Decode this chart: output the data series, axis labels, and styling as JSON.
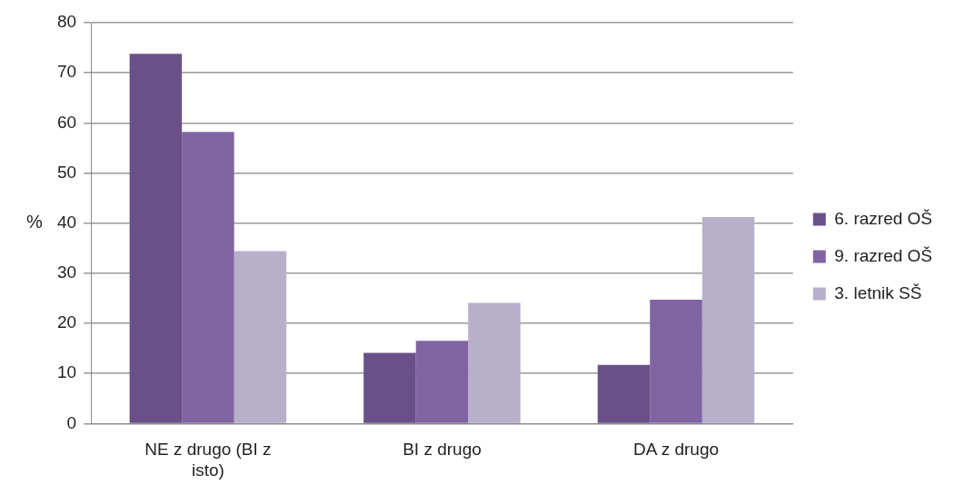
{
  "chart_data": {
    "type": "bar",
    "ylabel": "%",
    "categories": [
      "NE z drugo (BI z isto)",
      "BI z drugo",
      "DA z drugo"
    ],
    "series": [
      {
        "name": "6. razred OŠ",
        "color": "#6a5089",
        "values": [
          73.8,
          14.1,
          11.7
        ]
      },
      {
        "name": "9. razred OŠ",
        "color": "#8064a2",
        "values": [
          58.2,
          16.5,
          24.7
        ]
      },
      {
        "name": "3. letnik SŠ",
        "color": "#b8afcb",
        "values": [
          34.4,
          24.1,
          41.2
        ]
      }
    ],
    "ylim": [
      0,
      80
    ],
    "yticks": [
      0,
      10,
      20,
      30,
      40,
      50,
      60,
      70,
      80
    ],
    "grid": "y",
    "legend": "right"
  }
}
